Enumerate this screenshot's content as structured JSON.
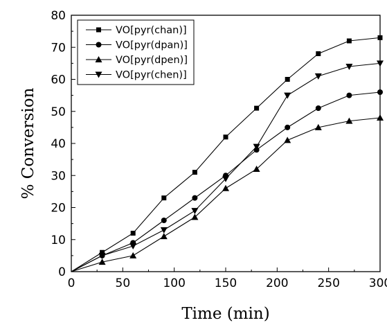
{
  "chart_data": {
    "type": "line",
    "xlabel": "Time (min)",
    "ylabel": "% Conversion",
    "xlim": [
      0,
      300
    ],
    "ylim": [
      0,
      80
    ],
    "x_ticks": [
      0,
      50,
      100,
      150,
      200,
      250,
      300
    ],
    "y_ticks": [
      0,
      10,
      20,
      30,
      40,
      50,
      60,
      70,
      80
    ],
    "grid": false,
    "legend_position": "top-left",
    "series": [
      {
        "name": "VO[pyr(chan)]",
        "marker": "square",
        "x": [
          0,
          30,
          60,
          90,
          120,
          150,
          180,
          210,
          240,
          270,
          300
        ],
        "y": [
          0,
          6,
          12,
          23,
          31,
          42,
          51,
          60,
          68,
          72,
          73
        ]
      },
      {
        "name": "VO[pyr(dpan)]",
        "marker": "circle",
        "x": [
          0,
          30,
          60,
          90,
          120,
          150,
          180,
          210,
          240,
          270,
          300
        ],
        "y": [
          0,
          5,
          9,
          16,
          23,
          30,
          38,
          45,
          51,
          55,
          56
        ]
      },
      {
        "name": "VO[pyr(dpen)]",
        "marker": "triangle-up",
        "x": [
          0,
          30,
          60,
          90,
          120,
          150,
          180,
          210,
          240,
          270,
          300
        ],
        "y": [
          0,
          3,
          5,
          11,
          17,
          26,
          32,
          41,
          45,
          47,
          48
        ]
      },
      {
        "name": "VO[pyr(chen)]",
        "marker": "triangle-down",
        "x": [
          0,
          30,
          60,
          90,
          120,
          150,
          180,
          210,
          240,
          270,
          300
        ],
        "y": [
          0,
          5,
          8,
          13,
          19,
          29,
          39,
          55,
          61,
          64,
          65
        ]
      }
    ]
  }
}
